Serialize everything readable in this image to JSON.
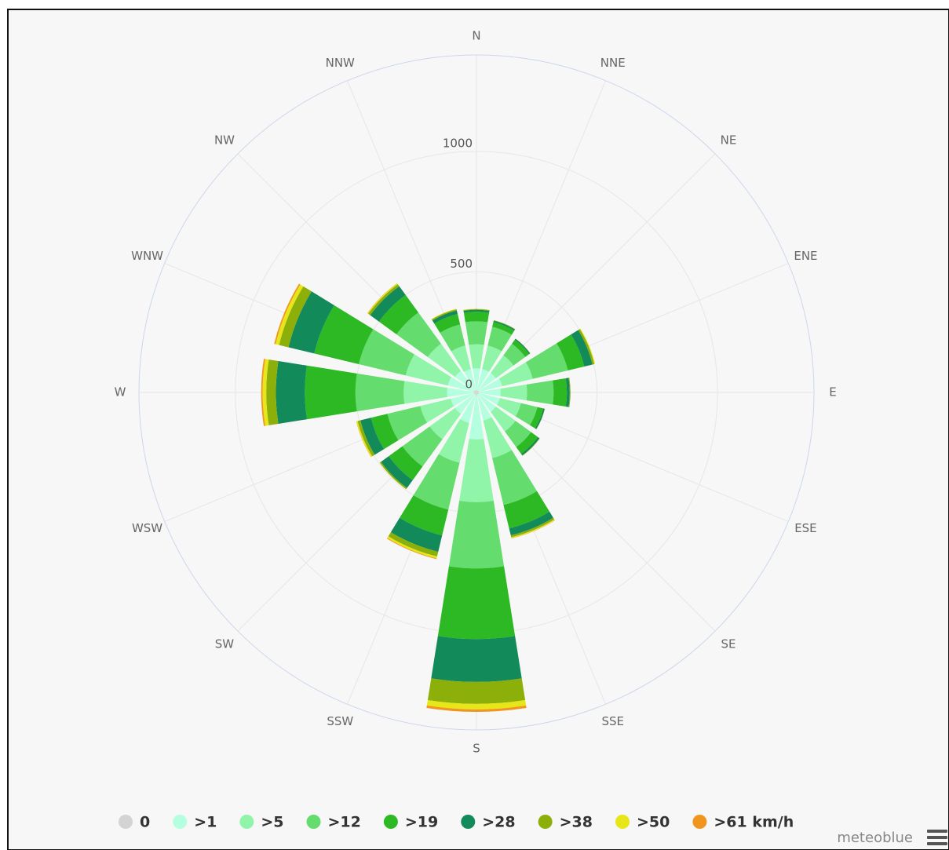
{
  "chart_data": {
    "type": "rose",
    "categories": [
      "N",
      "NNE",
      "NE",
      "ENE",
      "E",
      "ESE",
      "SE",
      "SSE",
      "S",
      "SSW",
      "SW",
      "WSW",
      "W",
      "WNW",
      "NW",
      "NNW"
    ],
    "ylim": [
      0,
      1400
    ],
    "yticks": [
      0,
      500,
      1000
    ],
    "grid": true,
    "legend": "bottom",
    "credit": "meteoblue",
    "series": [
      {
        "name": "0",
        "color": "#d3d3d3",
        "values": [
          10,
          10,
          10,
          10,
          10,
          10,
          10,
          10,
          16,
          10,
          10,
          10,
          12,
          12,
          10,
          10
        ]
      },
      {
        "name": ">1",
        "color": "#b4ffe0",
        "values": [
          90,
          90,
          90,
          100,
          90,
          90,
          90,
          110,
          179,
          120,
          100,
          100,
          110,
          110,
          100,
          90
        ]
      },
      {
        "name": ">5",
        "color": "#90f5a8",
        "values": [
          100,
          100,
          90,
          130,
          110,
          90,
          100,
          160,
          260,
          170,
          130,
          130,
          180,
          180,
          140,
          100
        ]
      },
      {
        "name": ">12",
        "color": "#64dc6e",
        "values": [
          95,
          80,
          60,
          150,
          110,
          70,
          80,
          200,
          275,
          200,
          140,
          140,
          200,
          200,
          160,
          90
        ]
      },
      {
        "name": ">19",
        "color": "#2db923",
        "values": [
          40,
          20,
          20,
          70,
          55,
          25,
          35,
          100,
          293,
          110,
          70,
          70,
          210,
          190,
          90,
          45
        ]
      },
      {
        "name": ">28",
        "color": "#128a5a",
        "values": [
          8,
          6,
          5,
          35,
          12,
          6,
          8,
          30,
          178,
          70,
          40,
          45,
          120,
          110,
          45,
          15
        ]
      },
      {
        "name": ">38",
        "color": "#8caf0a",
        "values": [
          3,
          2,
          1,
          8,
          3,
          1,
          2,
          8,
          91,
          20,
          6,
          12,
          40,
          40,
          10,
          5
        ]
      },
      {
        "name": ">50",
        "color": "#e6e619",
        "values": [
          1,
          0,
          0,
          3,
          0,
          0,
          0,
          4,
          23,
          8,
          1,
          5,
          15,
          15,
          4,
          2
        ]
      },
      {
        "name": ">61 km/h",
        "color": "#f0961e",
        "values": [
          0,
          0,
          0,
          0,
          0,
          0,
          0,
          1,
          10,
          3,
          0,
          1,
          6,
          6,
          1,
          0
        ]
      }
    ]
  }
}
